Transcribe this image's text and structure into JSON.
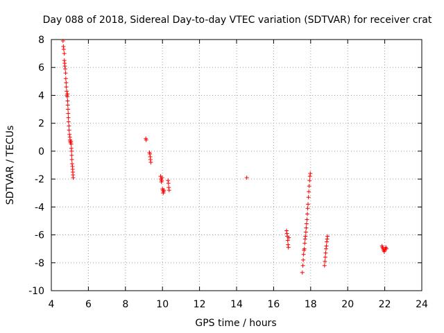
{
  "chart_data": {
    "type": "scatter",
    "title": "Day 088 of 2018, Sidereal Day-to-day VTEC variation (SDTVAR) for receiver crat",
    "xlabel": "GPS time / hours",
    "ylabel": "SDTVAR / TECUs",
    "xlim": [
      4,
      24
    ],
    "ylim": [
      -10,
      8
    ],
    "xticks": [
      4,
      6,
      8,
      10,
      12,
      14,
      16,
      18,
      20,
      22,
      24
    ],
    "yticks": [
      -10,
      -8,
      -6,
      -4,
      -2,
      0,
      2,
      4,
      6,
      8
    ],
    "xtick_labels": [
      "4",
      "6",
      "8",
      "10",
      "12",
      "14",
      "16",
      "18",
      "20",
      "22",
      "24"
    ],
    "ytick_labels": [
      "-10",
      "-8",
      "-6",
      "-4",
      "-2",
      "0",
      "2",
      "4",
      "6",
      "8"
    ],
    "grid": true,
    "marker": "+",
    "marker_color": "#ff0000",
    "series": [
      {
        "name": "SDTVAR",
        "points": [
          [
            4.63,
            7.9
          ],
          [
            4.65,
            7.5
          ],
          [
            4.67,
            7.3
          ],
          [
            4.7,
            7.0
          ],
          [
            4.7,
            6.5
          ],
          [
            4.72,
            6.3
          ],
          [
            4.73,
            6.1
          ],
          [
            4.75,
            5.9
          ],
          [
            4.77,
            5.6
          ],
          [
            4.78,
            5.2
          ],
          [
            4.8,
            4.9
          ],
          [
            4.81,
            4.6
          ],
          [
            4.83,
            4.3
          ],
          [
            4.84,
            4.0
          ],
          [
            4.86,
            3.9
          ],
          [
            4.87,
            4.1
          ],
          [
            4.88,
            3.6
          ],
          [
            4.89,
            3.3
          ],
          [
            4.9,
            3.0
          ],
          [
            4.91,
            2.7
          ],
          [
            4.92,
            2.4
          ],
          [
            4.93,
            2.1
          ],
          [
            4.95,
            1.8
          ],
          [
            4.96,
            1.5
          ],
          [
            4.98,
            1.2
          ],
          [
            5.0,
            1.0
          ],
          [
            5.01,
            0.8
          ],
          [
            5.02,
            0.7
          ],
          [
            5.04,
            0.6
          ],
          [
            5.06,
            0.7
          ],
          [
            5.07,
            0.5
          ],
          [
            5.08,
            0.2
          ],
          [
            5.09,
            0.0
          ],
          [
            5.1,
            -0.3
          ],
          [
            5.11,
            -0.6
          ],
          [
            5.12,
            -0.9
          ],
          [
            5.14,
            -1.1
          ],
          [
            5.15,
            -1.3
          ],
          [
            5.16,
            -1.5
          ],
          [
            5.17,
            -1.7
          ],
          [
            5.18,
            -1.9
          ],
          [
            9.1,
            0.9
          ],
          [
            9.12,
            0.8
          ],
          [
            9.3,
            -0.1
          ],
          [
            9.32,
            -0.2
          ],
          [
            9.34,
            -0.4
          ],
          [
            9.35,
            -0.6
          ],
          [
            9.37,
            -0.8
          ],
          [
            9.9,
            -1.8
          ],
          [
            9.92,
            -2.0
          ],
          [
            9.94,
            -2.2
          ],
          [
            9.96,
            -2.1
          ],
          [
            9.98,
            -1.9
          ],
          [
            10.0,
            -2.7
          ],
          [
            10.02,
            -2.8
          ],
          [
            10.04,
            -3.0
          ],
          [
            10.06,
            -2.9
          ],
          [
            10.08,
            -2.8
          ],
          [
            10.3,
            -2.1
          ],
          [
            10.32,
            -2.3
          ],
          [
            10.34,
            -2.6
          ],
          [
            10.36,
            -2.8
          ],
          [
            14.55,
            -1.9
          ],
          [
            16.7,
            -5.7
          ],
          [
            16.72,
            -5.9
          ],
          [
            16.74,
            -6.1
          ],
          [
            16.76,
            -6.4
          ],
          [
            16.78,
            -6.7
          ],
          [
            16.8,
            -6.9
          ],
          [
            16.82,
            -6.2
          ],
          [
            17.55,
            -8.7
          ],
          [
            17.58,
            -8.2
          ],
          [
            17.6,
            -7.8
          ],
          [
            17.62,
            -7.4
          ],
          [
            17.64,
            -7.1
          ],
          [
            17.66,
            -7.0
          ],
          [
            17.68,
            -6.6
          ],
          [
            17.7,
            -6.3
          ],
          [
            17.72,
            -6.1
          ],
          [
            17.74,
            -5.8
          ],
          [
            17.76,
            -5.5
          ],
          [
            17.78,
            -5.2
          ],
          [
            17.8,
            -4.9
          ],
          [
            17.82,
            -4.5
          ],
          [
            17.84,
            -4.1
          ],
          [
            17.86,
            -3.8
          ],
          [
            17.88,
            -3.3
          ],
          [
            17.9,
            -2.9
          ],
          [
            17.92,
            -2.5
          ],
          [
            17.94,
            -2.1
          ],
          [
            17.96,
            -1.8
          ],
          [
            17.98,
            -1.6
          ],
          [
            18.75,
            -8.2
          ],
          [
            18.77,
            -7.9
          ],
          [
            18.79,
            -7.6
          ],
          [
            18.81,
            -7.3
          ],
          [
            18.83,
            -7.0
          ],
          [
            18.85,
            -6.8
          ],
          [
            18.87,
            -6.5
          ],
          [
            18.89,
            -6.3
          ],
          [
            18.91,
            -6.1
          ],
          [
            21.85,
            -6.8
          ],
          [
            21.88,
            -6.9
          ],
          [
            21.91,
            -7.0
          ],
          [
            21.94,
            -7.1
          ],
          [
            21.97,
            -7.2
          ],
          [
            22.0,
            -7.1
          ],
          [
            22.03,
            -7.0
          ],
          [
            22.06,
            -6.9
          ],
          [
            22.09,
            -7.0
          ]
        ]
      }
    ]
  }
}
